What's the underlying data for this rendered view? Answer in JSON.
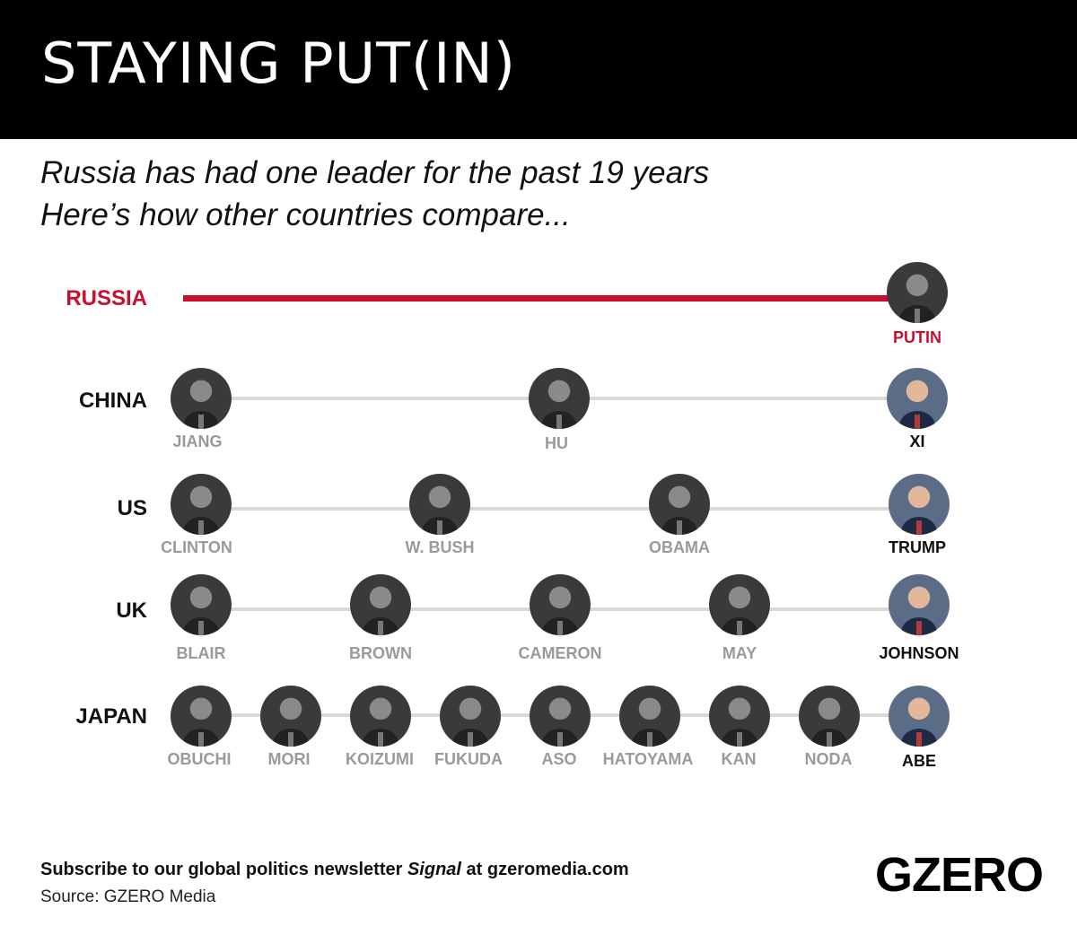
{
  "title": "STAYING PUT(IN)",
  "subtitle_line1": "Russia has had one leader for the past 19 years",
  "subtitle_line2": "Here’s how other countries compare...",
  "colors": {
    "russia_red": "#c8102e",
    "timeline_gray": "#d9d9d9",
    "past_name_gray": "#9a9a9a"
  },
  "countries": [
    {
      "name": "RUSSIA",
      "leaders": [
        "PUTIN"
      ]
    },
    {
      "name": "CHINA",
      "leaders": [
        "JIANG",
        "HU",
        "XI"
      ]
    },
    {
      "name": "US",
      "leaders": [
        "CLINTON",
        "W. BUSH",
        "OBAMA",
        "TRUMP"
      ]
    },
    {
      "name": "UK",
      "leaders": [
        "BLAIR",
        "BROWN",
        "CAMERON",
        "MAY",
        "JOHNSON"
      ]
    },
    {
      "name": "JAPAN",
      "leaders": [
        "OBUCHI",
        "MORI",
        "KOIZUMI",
        "FUKUDA",
        "ASO",
        "HATOYAMA",
        "KAN",
        "NODA",
        "ABE"
      ]
    }
  ],
  "footer": {
    "subscribe_prefix": "Subscribe to our global politics newsletter ",
    "newsletter_name": "Signal",
    "subscribe_suffix": " at gzeromedia.com",
    "source": "Source: GZERO Media",
    "logo": "GZERO"
  }
}
